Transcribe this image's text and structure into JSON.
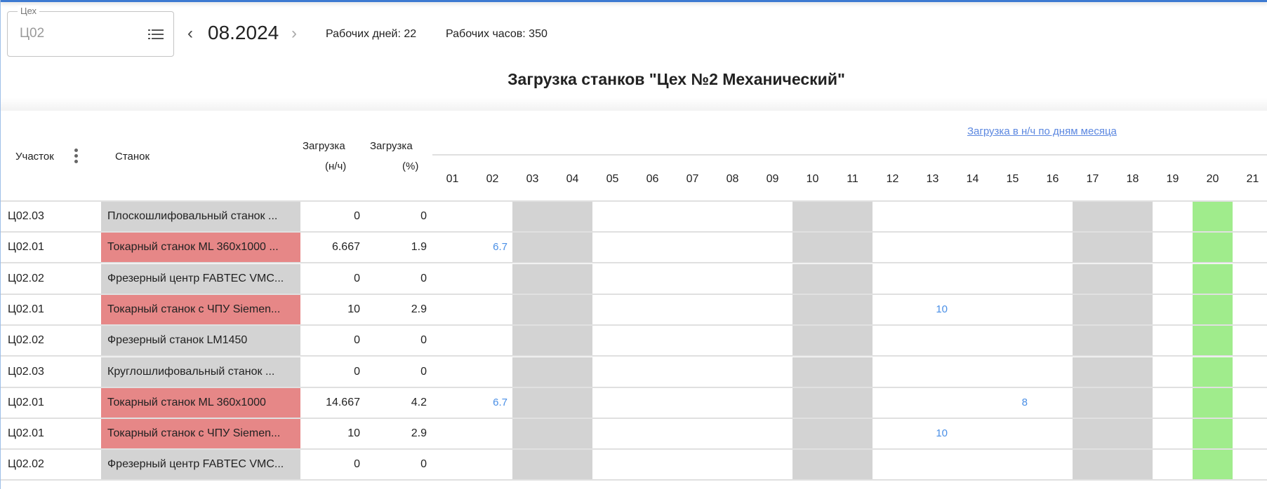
{
  "workshop_field": {
    "label": "Цех",
    "value": "Ц02",
    "icon": "list-icon"
  },
  "period": {
    "value": "08.2024",
    "prev_icon": "chevron-left-icon",
    "next_icon": "chevron-right-icon"
  },
  "stats": {
    "work_days": "Рабочих дней: 22",
    "work_hours": "Рабочих часов: 350"
  },
  "title": "Загрузка станков \"Цех №2 Механический\"",
  "table": {
    "headers": {
      "area": "Участок",
      "machine": "Станок",
      "load_nh_1": "Загрузка",
      "load_nh_2": "(н/ч)",
      "load_pct_1": "Загрузка",
      "load_pct_2": "(%)",
      "days_link": "Загрузка в н/ч по дням месяца"
    },
    "days": [
      "01",
      "02",
      "03",
      "04",
      "05",
      "06",
      "07",
      "08",
      "09",
      "10",
      "11",
      "12",
      "13",
      "14",
      "15",
      "16",
      "17",
      "18",
      "19",
      "20",
      "21"
    ],
    "day_types": {
      "03": "weekend",
      "04": "weekend",
      "10": "weekend",
      "11": "weekend",
      "17": "weekend",
      "18": "weekend",
      "20": "highlight"
    },
    "colors": {
      "weekend": "#d3d3d3",
      "highlight": "#a0ec8c",
      "machine_loaded": "#e68787",
      "machine_idle": "#d3d3d3",
      "day_value": "#4a8fe6"
    },
    "rows": [
      {
        "area": "Ц02.03",
        "machine": "Плоскошлифовальный станок ...",
        "status": "idle",
        "load_nh": "0",
        "load_pct": "0",
        "values": {}
      },
      {
        "area": "Ц02.01",
        "machine": "Токарный станок ML 360x1000 ...",
        "status": "loaded",
        "load_nh": "6.667",
        "load_pct": "1.9",
        "values": {
          "02": "6.7"
        }
      },
      {
        "area": "Ц02.02",
        "machine": "Фрезерный центр FABTEC VMC...",
        "status": "idle",
        "load_nh": "0",
        "load_pct": "0",
        "values": {}
      },
      {
        "area": "Ц02.01",
        "machine": "Токарный станок с ЧПУ Siemen...",
        "status": "loaded",
        "load_nh": "10",
        "load_pct": "2.9",
        "values": {
          "13": "10"
        }
      },
      {
        "area": "Ц02.02",
        "machine": "Фрезерный станок LM1450",
        "status": "idle",
        "load_nh": "0",
        "load_pct": "0",
        "values": {}
      },
      {
        "area": "Ц02.03",
        "machine": "Круглошлифовальный станок ...",
        "status": "idle",
        "load_nh": "0",
        "load_pct": "0",
        "values": {}
      },
      {
        "area": "Ц02.01",
        "machine": "Токарный станок ML 360x1000",
        "status": "loaded",
        "load_nh": "14.667",
        "load_pct": "4.2",
        "values": {
          "02": "6.7",
          "15": "8"
        }
      },
      {
        "area": "Ц02.01",
        "machine": "Токарный станок с ЧПУ Siemen...",
        "status": "loaded",
        "load_nh": "10",
        "load_pct": "2.9",
        "values": {
          "13": "10"
        }
      },
      {
        "area": "Ц02.02",
        "machine": "Фрезерный центр FABTEC VMC...",
        "status": "idle",
        "load_nh": "0",
        "load_pct": "0",
        "values": {}
      }
    ]
  }
}
